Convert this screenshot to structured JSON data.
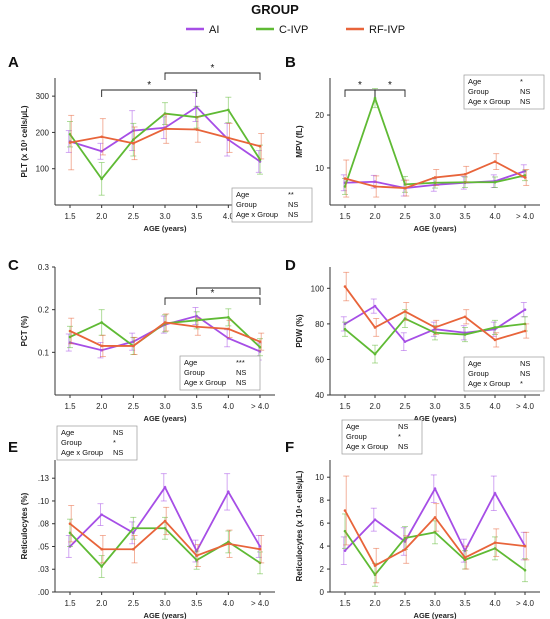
{
  "legend": {
    "title": "GROUP",
    "items": [
      {
        "label": "AI",
        "color": "#a64ee6"
      },
      {
        "label": "C-IVP",
        "color": "#5fba34"
      },
      {
        "label": "RF-IVP",
        "color": "#e8643a"
      }
    ]
  },
  "chart_data": [
    {
      "panel": "A",
      "type": "line",
      "xlabel": "AGE (years)",
      "ylabel": "PLT (x 10³ cells/µL)",
      "categories": [
        "1.5",
        "2.0",
        "2.5",
        "3.0",
        "3.5",
        "4.0",
        "> 4.0"
      ],
      "yticks": [
        "100",
        "200",
        "300"
      ],
      "ytick_values": [
        100,
        200,
        300
      ],
      "ylim": [
        0,
        350
      ],
      "series": [
        {
          "name": "AI",
          "values": [
            175,
            148,
            205,
            213,
            270,
            180,
            120
          ],
          "err": [
            30,
            22,
            55,
            30,
            40,
            45,
            30
          ]
        },
        {
          "name": "C-IVP",
          "values": [
            195,
            72,
            180,
            252,
            242,
            262,
            125
          ],
          "err": [
            35,
            45,
            45,
            30,
            30,
            35,
            40
          ]
        },
        {
          "name": "RF-IVP",
          "values": [
            172,
            188,
            170,
            210,
            208,
            185,
            162
          ],
          "err": [
            75,
            50,
            45,
            40,
            35,
            40,
            35
          ]
        }
      ],
      "stats": [
        {
          "label": "Age",
          "value": "**"
        },
        {
          "label": "Group",
          "value": "NS"
        },
        {
          "label": "Age x Group",
          "value": "NS"
        }
      ],
      "brackets": [
        {
          "from": "2.0",
          "to": "3.5",
          "mark": "*"
        },
        {
          "from": "3.0",
          "to": "> 4.0",
          "mark": "*"
        }
      ]
    },
    {
      "panel": "B",
      "type": "line",
      "xlabel": "AGE (years)",
      "ylabel": "MPV (fL)",
      "categories": [
        "1.5",
        "2.0",
        "2.5",
        "3.0",
        "3.5",
        "4.0",
        "> 4.0"
      ],
      "yticks": [
        "10",
        "20"
      ],
      "ytick_values": [
        10,
        20
      ],
      "ylim": [
        3,
        27
      ],
      "series": [
        {
          "name": "AI",
          "values": [
            7.2,
            7.4,
            6.2,
            6.8,
            7.2,
            7.5,
            9.4
          ],
          "err": [
            1.5,
            1.2,
            1.5,
            1.2,
            1.2,
            1.2,
            1.2
          ]
        },
        {
          "name": "C-IVP",
          "values": [
            6.5,
            23.2,
            6.9,
            7.2,
            7.3,
            7.3,
            8.6
          ],
          "err": [
            1.5,
            1.8,
            1.5,
            1.0,
            1.0,
            1.0,
            1.0
          ]
        },
        {
          "name": "RF-IVP",
          "values": [
            8.0,
            6.5,
            6.2,
            8.2,
            8.8,
            11.2,
            8.2
          ],
          "err": [
            3.5,
            2.0,
            1.5,
            1.5,
            1.5,
            1.5,
            1.5
          ]
        }
      ],
      "stats": [
        {
          "label": "Age",
          "value": "*"
        },
        {
          "label": "Group",
          "value": "NS"
        },
        {
          "label": "Age x Group",
          "value": "NS"
        }
      ],
      "brackets": [
        {
          "from": "1.5",
          "to": "2.0",
          "mark": "*"
        },
        {
          "from": "2.0",
          "to": "2.5",
          "mark": "*"
        }
      ]
    },
    {
      "panel": "C",
      "type": "line",
      "xlabel": "AGE (years)",
      "ylabel": "PCT (%)",
      "categories": [
        "1.5",
        "2.0",
        "2.5",
        "3.0",
        "3.5",
        "4.0",
        "> 4.0"
      ],
      "yticks": [
        "0.1",
        "0.2",
        "0.3"
      ],
      "ytick_values": [
        0.1,
        0.2,
        0.3
      ],
      "ylim": [
        0.0,
        0.3
      ],
      "series": [
        {
          "name": "AI",
          "values": [
            0.123,
            0.105,
            0.125,
            0.165,
            0.185,
            0.133,
            0.102
          ],
          "err": [
            0.02,
            0.018,
            0.02,
            0.02,
            0.02,
            0.02,
            0.02
          ]
        },
        {
          "name": "C-IVP",
          "values": [
            0.136,
            0.17,
            0.115,
            0.168,
            0.175,
            0.182,
            0.112
          ],
          "err": [
            0.025,
            0.03,
            0.02,
            0.02,
            0.02,
            0.02,
            0.02
          ]
        },
        {
          "name": "RF-IVP",
          "values": [
            0.15,
            0.115,
            0.115,
            0.17,
            0.16,
            0.155,
            0.125
          ],
          "err": [
            0.03,
            0.025,
            0.02,
            0.02,
            0.02,
            0.02,
            0.02
          ]
        }
      ],
      "stats": [
        {
          "label": "Age",
          "value": "***"
        },
        {
          "label": "Group",
          "value": "NS"
        },
        {
          "label": "Age x Group",
          "value": "NS"
        }
      ],
      "brackets": [
        {
          "from": "3.0",
          "to": "> 4.0",
          "mark": "*"
        },
        {
          "from": "3.5",
          "to": "> 4.0",
          "mark": ""
        }
      ]
    },
    {
      "panel": "D",
      "type": "line",
      "xlabel": "AGE (years)",
      "ylabel": "PDW (%)",
      "categories": [
        "1.5",
        "2.0",
        "2.5",
        "3.0",
        "3.5",
        "4.0",
        "> 4.0"
      ],
      "yticks": [
        "40",
        "60",
        "80",
        "100"
      ],
      "ytick_values": [
        40,
        60,
        80,
        100
      ],
      "ylim": [
        40,
        112
      ],
      "series": [
        {
          "name": "AI",
          "values": [
            80,
            90,
            70,
            77,
            75,
            77,
            88
          ],
          "err": [
            4,
            4,
            5,
            4,
            4,
            4,
            4
          ]
        },
        {
          "name": "C-IVP",
          "values": [
            77,
            63,
            83,
            75,
            74,
            78,
            80
          ],
          "err": [
            4,
            5,
            5,
            4,
            4,
            4,
            4
          ]
        },
        {
          "name": "RF-IVP",
          "values": [
            101,
            78,
            87,
            78,
            84,
            71,
            76
          ],
          "err": [
            8,
            5,
            5,
            4,
            4,
            4,
            4
          ]
        }
      ],
      "stats": [
        {
          "label": "Age",
          "value": "NS"
        },
        {
          "label": "Group",
          "value": "NS"
        },
        {
          "label": "Age x Group",
          "value": "*"
        }
      ],
      "brackets": []
    },
    {
      "panel": "E",
      "type": "line",
      "xlabel": "AGE (years)",
      "ylabel": "Reticulocytes (%)",
      "categories": [
        "1.5",
        "2.0",
        "2.5",
        "3.0",
        "3.5",
        "4.0",
        "> 4.0"
      ],
      "yticks": [
        ".00",
        ".03",
        ".05",
        ".08",
        ".10",
        ".13"
      ],
      "ytick_values": [
        0,
        0.025,
        0.05,
        0.075,
        0.1,
        0.125
      ],
      "ylim": [
        0.0,
        0.145
      ],
      "series": [
        {
          "name": "AI",
          "values": [
            0.05,
            0.085,
            0.065,
            0.115,
            0.045,
            0.11,
            0.05
          ],
          "err": [
            0.012,
            0.012,
            0.012,
            0.015,
            0.012,
            0.02,
            0.012
          ]
        },
        {
          "name": "C-IVP",
          "values": [
            0.065,
            0.028,
            0.07,
            0.07,
            0.035,
            0.055,
            0.032
          ],
          "err": [
            0.015,
            0.012,
            0.012,
            0.012,
            0.01,
            0.012,
            0.012
          ]
        },
        {
          "name": "RF-IVP",
          "values": [
            0.075,
            0.047,
            0.047,
            0.078,
            0.04,
            0.053,
            0.047
          ],
          "err": [
            0.02,
            0.015,
            0.015,
            0.015,
            0.012,
            0.015,
            0.015
          ]
        }
      ],
      "stats": [
        {
          "label": "Age",
          "value": "NS"
        },
        {
          "label": "Group",
          "value": "*"
        },
        {
          "label": "Age x Group",
          "value": "NS"
        }
      ],
      "brackets": []
    },
    {
      "panel": "F",
      "type": "line",
      "xlabel": "AGE (years)",
      "ylabel": "Reticulocytes (x 10⁴ cells/µL)",
      "categories": [
        "1.5",
        "2.0",
        "2.5",
        "3.0",
        "3.5",
        "4.0",
        "> 4.0"
      ],
      "yticks": [
        "0",
        "2",
        "4",
        "6",
        "8",
        "10"
      ],
      "ytick_values": [
        0,
        2,
        4,
        6,
        8,
        10
      ],
      "ylim": [
        0,
        11.5
      ],
      "series": [
        {
          "name": "AI",
          "values": [
            3.6,
            6.3,
            4.4,
            9.0,
            3.6,
            8.6,
            4.0
          ],
          "err": [
            1.2,
            1.0,
            1.2,
            1.2,
            1.0,
            1.5,
            1.2
          ]
        },
        {
          "name": "C-IVP",
          "values": [
            5.3,
            1.5,
            4.7,
            5.2,
            2.8,
            3.8,
            1.9
          ],
          "err": [
            1.5,
            1.0,
            1.0,
            1.0,
            0.8,
            1.0,
            1.0
          ]
        },
        {
          "name": "RF-IVP",
          "values": [
            7.1,
            2.3,
            3.7,
            6.5,
            3.0,
            4.3,
            4.0
          ],
          "err": [
            3.0,
            1.5,
            1.2,
            1.2,
            1.0,
            1.2,
            1.2
          ]
        }
      ],
      "stats": [
        {
          "label": "Age",
          "value": "NS"
        },
        {
          "label": "Group",
          "value": "*"
        },
        {
          "label": "Age x Group",
          "value": "NS"
        }
      ],
      "brackets": []
    }
  ]
}
